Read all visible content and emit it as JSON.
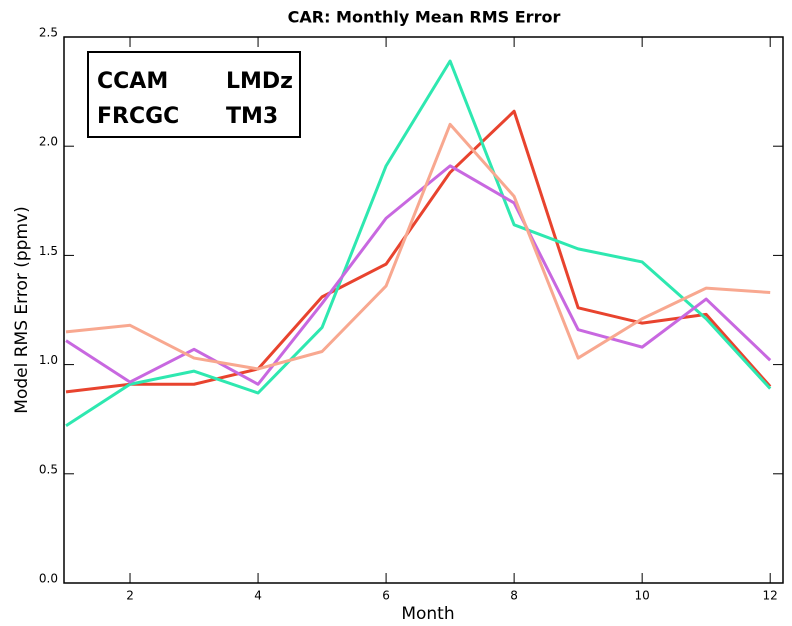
{
  "chart_data": {
    "type": "line",
    "title": "CAR: Monthly Mean RMS Error",
    "x_label": "Month",
    "y_label": "Model RMS Error (ppmv)",
    "x": [
      1,
      2,
      3,
      4,
      5,
      6,
      7,
      8,
      9,
      10,
      11,
      12
    ],
    "xlim": [
      1,
      12.2
    ],
    "xticks": [
      2,
      4,
      6,
      8,
      10,
      12
    ],
    "ylim": [
      0,
      2.5
    ],
    "yticks": [
      {
        "value": 0,
        "label": "0.0"
      },
      {
        "value": 0.5,
        "label": "0.5"
      },
      {
        "value": 1,
        "label": "1.0"
      },
      {
        "value": 1.5,
        "label": "1.5"
      },
      {
        "value": 2,
        "label": "2.0"
      },
      {
        "value": 2.5,
        "label": "2.5"
      }
    ],
    "legend": "upper left",
    "series": [
      {
        "name": "CCAM",
        "color": "#e8432e",
        "values": [
          0.875,
          0.91,
          0.91,
          0.98,
          1.31,
          1.46,
          1.88,
          2.16,
          1.26,
          1.19,
          1.23,
          0.9
        ]
      },
      {
        "name": "LMDz",
        "color": "#2ee8b0",
        "values": [
          0.72,
          0.91,
          0.97,
          0.87,
          1.17,
          1.91,
          2.39,
          1.64,
          1.53,
          1.47,
          1.21,
          0.89
        ]
      },
      {
        "name": "FRCGC",
        "color": "#c868e0",
        "values": [
          1.11,
          0.92,
          1.07,
          0.91,
          1.28,
          1.67,
          1.91,
          1.74,
          1.16,
          1.08,
          1.3,
          1.02
        ]
      },
      {
        "name": "TM3",
        "color": "#f8a890",
        "values": [
          1.15,
          1.18,
          1.03,
          0.98,
          1.06,
          1.36,
          2.1,
          1.77,
          1.03,
          1.21,
          1.35,
          1.33
        ]
      }
    ]
  }
}
